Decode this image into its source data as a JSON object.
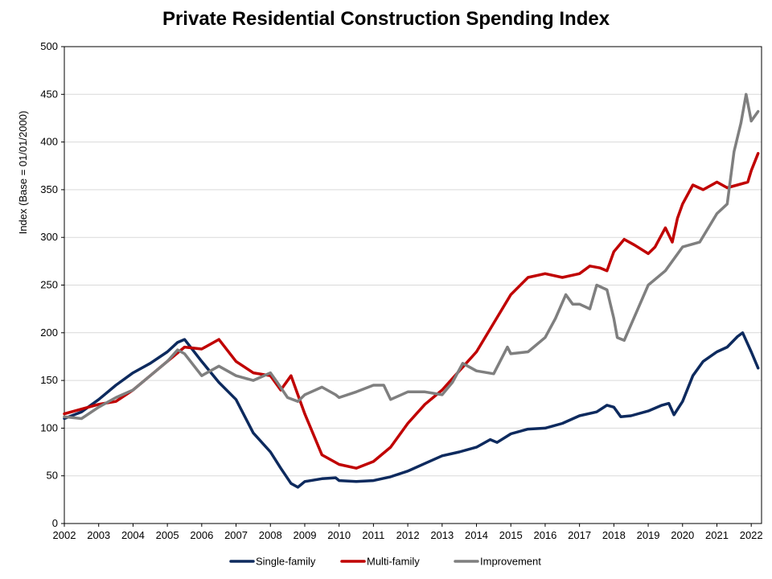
{
  "chart_data": {
    "type": "line",
    "title": "Private Residential Construction Spending Index",
    "ylabel": "Index  (Base = 01/01/2000)",
    "xlabel": "",
    "ylim": [
      0,
      500
    ],
    "yticks": [
      0,
      50,
      100,
      150,
      200,
      250,
      300,
      350,
      400,
      450,
      500
    ],
    "xlim": [
      2002,
      2022.3
    ],
    "xticks": [
      "2002",
      "2003",
      "2004",
      "2005",
      "2006",
      "2007",
      "2008",
      "2009",
      "2010",
      "2011",
      "2012",
      "2013",
      "2014",
      "2015",
      "2016",
      "2017",
      "2018",
      "2019",
      "2020",
      "2021",
      "2022"
    ],
    "grid": true,
    "legend": "bottom",
    "series": [
      {
        "name": "Single-family",
        "color": "#0d2a5e",
        "x": [
          2002,
          2002.5,
          2003,
          2003.5,
          2004,
          2004.5,
          2005,
          2005.3,
          2005.5,
          2006,
          2006.5,
          2007,
          2007.5,
          2008,
          2008.3,
          2008.6,
          2008.8,
          2009,
          2009.5,
          2009.9,
          2010,
          2010.5,
          2011,
          2011.5,
          2012,
          2012.5,
          2013,
          2013.5,
          2014,
          2014.4,
          2014.6,
          2015,
          2015.5,
          2016,
          2016.5,
          2017,
          2017.5,
          2017.8,
          2018,
          2018.2,
          2018.5,
          2019,
          2019.4,
          2019.6,
          2019.75,
          2020,
          2020.3,
          2020.6,
          2021,
          2021.3,
          2021.6,
          2021.75,
          2022,
          2022.2
        ],
        "values": [
          110,
          117,
          130,
          145,
          158,
          168,
          180,
          190,
          193,
          170,
          148,
          130,
          95,
          75,
          58,
          42,
          38,
          44,
          47,
          48,
          45,
          44,
          45,
          49,
          55,
          63,
          71,
          75,
          80,
          88,
          85,
          94,
          99,
          100,
          105,
          113,
          117,
          124,
          122,
          112,
          113,
          118,
          124,
          126,
          114,
          128,
          155,
          170,
          180,
          185,
          196,
          200,
          180,
          163
        ]
      },
      {
        "name": "Multi-family",
        "color": "#c00000",
        "x": [
          2002,
          2002.5,
          2003,
          2003.5,
          2004,
          2004.5,
          2005,
          2005.5,
          2006,
          2006.5,
          2007,
          2007.5,
          2008,
          2008.3,
          2008.6,
          2008.8,
          2009,
          2009.5,
          2010,
          2010.5,
          2011,
          2011.5,
          2012,
          2012.5,
          2013,
          2013.5,
          2014,
          2014.5,
          2015,
          2015.5,
          2016,
          2016.5,
          2017,
          2017.3,
          2017.6,
          2017.8,
          2018,
          2018.3,
          2018.6,
          2019,
          2019.2,
          2019.5,
          2019.7,
          2019.85,
          2020,
          2020.3,
          2020.6,
          2021,
          2021.3,
          2021.6,
          2021.9,
          2022,
          2022.2
        ],
        "values": [
          115,
          120,
          125,
          128,
          140,
          155,
          170,
          185,
          183,
          193,
          170,
          158,
          155,
          140,
          155,
          135,
          115,
          72,
          62,
          58,
          65,
          80,
          105,
          125,
          140,
          160,
          180,
          210,
          240,
          258,
          262,
          258,
          262,
          270,
          268,
          265,
          285,
          298,
          292,
          283,
          290,
          310,
          295,
          320,
          335,
          355,
          350,
          358,
          352,
          355,
          358,
          370,
          388
        ]
      },
      {
        "name": "Improvement",
        "color": "#7f7f7f",
        "x": [
          2002,
          2002.5,
          2003,
          2003.5,
          2004,
          2004.5,
          2005,
          2005.3,
          2005.5,
          2006,
          2006.5,
          2007,
          2007.5,
          2008,
          2008.2,
          2008.5,
          2008.8,
          2009,
          2009.5,
          2009.9,
          2010,
          2010.5,
          2011,
          2011.3,
          2011.5,
          2012,
          2012.5,
          2013,
          2013.3,
          2013.6,
          2014,
          2014.5,
          2014.9,
          2015,
          2015.5,
          2016,
          2016.3,
          2016.6,
          2016.8,
          2017,
          2017.3,
          2017.5,
          2017.8,
          2018,
          2018.1,
          2018.3,
          2019,
          2019.5,
          2020,
          2020.5,
          2021,
          2021.3,
          2021.5,
          2021.7,
          2021.85,
          2022,
          2022.2
        ],
        "values": [
          112,
          110,
          122,
          132,
          140,
          155,
          170,
          182,
          178,
          155,
          165,
          155,
          150,
          158,
          148,
          132,
          128,
          135,
          143,
          135,
          132,
          138,
          145,
          145,
          130,
          138,
          138,
          135,
          148,
          168,
          160,
          157,
          185,
          178,
          180,
          195,
          215,
          240,
          230,
          230,
          225,
          250,
          245,
          215,
          195,
          192,
          250,
          265,
          290,
          295,
          325,
          335,
          390,
          420,
          450,
          422,
          432
        ]
      }
    ]
  }
}
